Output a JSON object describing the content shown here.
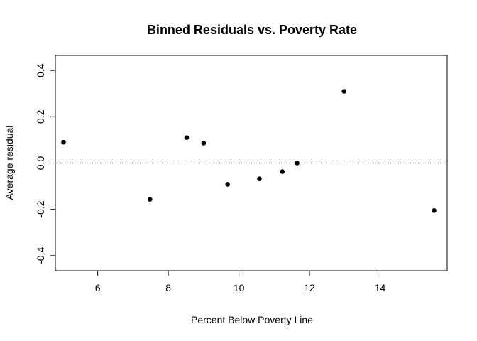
{
  "chart_data": {
    "type": "scatter",
    "title": "Binned Residuals vs. Poverty Rate",
    "xlabel": "Percent Below Poverty Line",
    "ylabel": "Average residual",
    "xlim": [
      4.8,
      15.9
    ],
    "ylim": [
      -0.465,
      0.465
    ],
    "x_ticks": [
      6,
      8,
      10,
      12,
      14
    ],
    "x_tick_labels": [
      "6",
      "8",
      "10",
      "12",
      "14"
    ],
    "y_ticks": [
      -0.4,
      -0.2,
      0.0,
      0.2,
      0.4
    ],
    "y_tick_labels": [
      "-0.4",
      "-0.2",
      "0.0",
      "0.2",
      "0.4"
    ],
    "reference_line": {
      "y": 0,
      "style": "dashed"
    },
    "grid": false,
    "points": [
      {
        "x": 5.03,
        "y": 0.09
      },
      {
        "x": 7.48,
        "y": -0.157
      },
      {
        "x": 8.52,
        "y": 0.11
      },
      {
        "x": 9.0,
        "y": 0.086
      },
      {
        "x": 9.68,
        "y": -0.092
      },
      {
        "x": 10.58,
        "y": -0.068
      },
      {
        "x": 11.23,
        "y": -0.037
      },
      {
        "x": 11.65,
        "y": 0.0
      },
      {
        "x": 12.98,
        "y": 0.31
      },
      {
        "x": 15.53,
        "y": -0.205
      }
    ],
    "point_color": "#000000"
  }
}
